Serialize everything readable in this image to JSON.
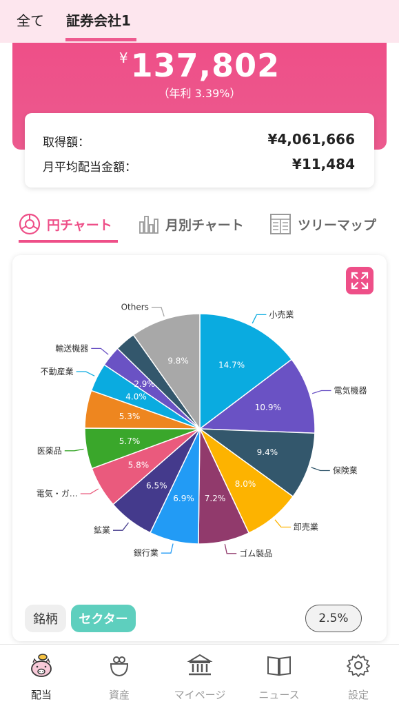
{
  "top_tabs": {
    "all": "全て",
    "broker": "証券会社1"
  },
  "hero": {
    "currency": "¥",
    "amount": "137,802",
    "yield": "（年利 3.39%）"
  },
  "summary": {
    "acquisition_label": "取得額：",
    "acquisition_value": "¥4,061,666",
    "monthly_label": "月平均配当金額：",
    "monthly_value": "¥11,484"
  },
  "chart_tabs": {
    "pie": "円チャート",
    "monthly": "月別チャート",
    "tree": "ツリーマップ"
  },
  "toggles": {
    "stock": "銘柄",
    "sector": "セクター",
    "threshold": "2.5%"
  },
  "nav": {
    "dividend": "配当",
    "assets": "資産",
    "mypage": "マイページ",
    "news": "ニュース",
    "settings": "設定"
  },
  "colors": {
    "accent": "#ee4f88",
    "teal": "#5ecfbe"
  },
  "chart_data": {
    "type": "pie",
    "title": "",
    "slices": [
      {
        "label": "小売業",
        "value": 14.7,
        "value_label": "14.7%",
        "color": "#0aabe0"
      },
      {
        "label": "電気機器",
        "value": 10.9,
        "value_label": "10.9%",
        "color": "#6a52c4"
      },
      {
        "label": "保険業",
        "value": 9.4,
        "value_label": "9.4%",
        "color": "#33576c"
      },
      {
        "label": "卸売業",
        "value": 8.0,
        "value_label": "8.0%",
        "color": "#fdb300"
      },
      {
        "label": "ゴム製品",
        "value": 7.2,
        "value_label": "7.2%",
        "color": "#913a6c"
      },
      {
        "label": "銀行業",
        "value": 6.9,
        "value_label": "6.9%",
        "color": "#229bf5"
      },
      {
        "label": "鉱業",
        "value": 6.5,
        "value_label": "6.5%",
        "color": "#443a8c"
      },
      {
        "label": "電気・ガ…",
        "value": 5.8,
        "value_label": "5.8%",
        "color": "#ea5a7d"
      },
      {
        "label": "医薬品",
        "value": 5.7,
        "value_label": "5.7%",
        "color": "#3aa72b"
      },
      {
        "label": "",
        "value": 5.3,
        "value_label": "5.3%",
        "color": "#ee861f"
      },
      {
        "label": "不動産業",
        "value": 4.0,
        "value_label": "4.0%",
        "color": "#0aabe0"
      },
      {
        "label": "輸送機器",
        "value": 2.9,
        "value_label": "2.9%",
        "color": "#6a52c4"
      },
      {
        "label": "",
        "value": 2.9,
        "value_label": "",
        "color": "#33576c"
      },
      {
        "label": "Others",
        "value": 9.8,
        "value_label": "9.8%",
        "color": "#a8a8a8"
      }
    ]
  }
}
